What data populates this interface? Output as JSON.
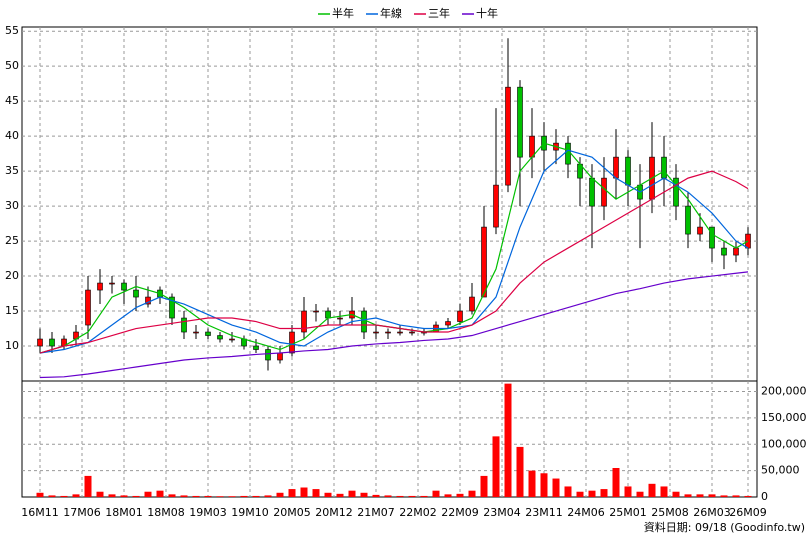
{
  "chart_data": [
    {
      "type": "candlestick",
      "legend": "top",
      "grid": true,
      "up_color": "#ff0000",
      "down_color": "#00c000",
      "xlim": [
        -3,
        119.5
      ],
      "ylim": [
        5,
        55.6
      ],
      "yticks": [
        10,
        15,
        20,
        25,
        30,
        35,
        40,
        45,
        50,
        55
      ],
      "x": [
        0,
        2,
        4,
        6,
        8,
        10,
        12,
        14,
        16,
        18,
        20,
        22,
        24,
        26,
        28,
        30,
        32,
        34,
        36,
        38,
        40,
        42,
        44,
        46,
        48,
        50,
        52,
        54,
        56,
        58,
        60,
        62,
        64,
        66,
        68,
        70,
        72,
        74,
        76,
        78,
        80,
        82,
        84,
        86,
        88,
        90,
        92,
        94,
        96,
        98,
        100,
        102,
        104,
        106,
        108,
        110,
        112,
        114,
        116,
        118
      ],
      "open": [
        10,
        11,
        10,
        11,
        13,
        18,
        19,
        19,
        18,
        16,
        18,
        17,
        14,
        12,
        12,
        11.5,
        11,
        11,
        10,
        9.5,
        8,
        9,
        12,
        15,
        15,
        14,
        14,
        15,
        12,
        12,
        12,
        12,
        12,
        12,
        13,
        13.5,
        15,
        17,
        27,
        33,
        47,
        37,
        40,
        38,
        39,
        36,
        34,
        30,
        34,
        37,
        33,
        31,
        37,
        34,
        30,
        26,
        27,
        24,
        23,
        24
      ],
      "high": [
        12.5,
        12,
        11.5,
        13,
        20,
        21,
        20,
        19.5,
        20,
        18.5,
        18.5,
        17.5,
        15,
        13,
        12.5,
        12,
        12,
        11.5,
        11,
        10,
        10,
        13,
        17,
        16,
        15.5,
        15,
        17,
        15.5,
        13,
        12.5,
        13,
        12.5,
        12.5,
        13.5,
        14,
        16,
        19,
        30,
        44,
        54,
        48,
        44,
        42,
        41,
        40,
        37,
        36,
        37,
        41,
        38,
        36,
        42,
        40,
        36,
        32,
        29,
        27,
        25,
        25,
        27
      ],
      "low": [
        9,
        9,
        9.5,
        10,
        11,
        16,
        17.5,
        16,
        15,
        15.5,
        16,
        13,
        11,
        11,
        11,
        10.5,
        10.5,
        9.5,
        9,
        6.5,
        7.5,
        8.5,
        11,
        13.5,
        13,
        13,
        13,
        11,
        11,
        11,
        11.5,
        11.5,
        11.5,
        12,
        12.5,
        13,
        14.5,
        17,
        26,
        32,
        30,
        34,
        35,
        36,
        34,
        30,
        24,
        28,
        31,
        30,
        24,
        29,
        30,
        28,
        24,
        25,
        22,
        21,
        22,
        23
      ],
      "close": [
        11,
        10,
        11,
        12,
        18,
        19,
        19,
        18,
        17,
        17,
        17,
        14,
        12,
        12,
        11.5,
        11,
        11,
        10,
        9.5,
        8,
        9,
        12,
        15,
        15,
        14,
        14,
        15,
        12,
        12,
        12,
        12,
        12,
        12,
        13,
        13.5,
        15,
        17,
        27,
        33,
        47,
        37,
        40,
        38,
        39,
        36,
        34,
        30,
        34,
        37,
        33,
        31,
        37,
        34,
        30,
        26,
        27,
        24,
        23,
        24,
        26
      ],
      "series": [
        {
          "name": "半年",
          "color": "#00c000",
          "x": [
            0,
            4,
            8,
            12,
            16,
            20,
            24,
            28,
            32,
            36,
            40,
            44,
            48,
            52,
            56,
            60,
            64,
            68,
            72,
            76,
            80,
            84,
            88,
            92,
            96,
            100,
            104,
            108,
            112,
            116,
            118
          ],
          "values": [
            9,
            10,
            12,
            17,
            18.5,
            17.5,
            15.5,
            13,
            11.5,
            10.5,
            9.5,
            11,
            14,
            14.5,
            13,
            12.5,
            12,
            12.5,
            14,
            21,
            35,
            39,
            38,
            34,
            31,
            33,
            35,
            31,
            26,
            24,
            25
          ]
        },
        {
          "name": "年線",
          "color": "#0066dd",
          "x": [
            0,
            4,
            8,
            12,
            16,
            20,
            24,
            28,
            32,
            36,
            40,
            44,
            48,
            52,
            56,
            60,
            64,
            68,
            72,
            76,
            80,
            84,
            88,
            92,
            96,
            100,
            104,
            108,
            112,
            116,
            118
          ],
          "values": [
            9,
            9.5,
            10.5,
            13,
            15.5,
            17,
            16,
            14.5,
            13,
            12,
            10.5,
            10,
            12,
            13.5,
            14,
            13,
            12.5,
            12.5,
            13,
            17,
            27,
            35,
            38,
            37,
            34,
            32,
            34,
            32,
            29,
            25,
            24
          ]
        },
        {
          "name": "三年",
          "color": "#dd0044",
          "x": [
            0,
            4,
            8,
            12,
            16,
            20,
            24,
            28,
            32,
            36,
            40,
            44,
            48,
            52,
            56,
            60,
            64,
            68,
            72,
            76,
            80,
            84,
            88,
            92,
            96,
            100,
            104,
            108,
            112,
            116,
            118
          ],
          "values": [
            9,
            10,
            10.5,
            11.5,
            12.5,
            13,
            13.5,
            14,
            14,
            13.5,
            12.5,
            12.5,
            13,
            13,
            13,
            12.5,
            12,
            12,
            13,
            15,
            19,
            22,
            24,
            26,
            28,
            30,
            32,
            34,
            35,
            33.5,
            32.5
          ]
        },
        {
          "name": "十年",
          "color": "#6600cc",
          "x": [
            0,
            4,
            8,
            12,
            16,
            20,
            24,
            28,
            32,
            36,
            40,
            44,
            48,
            52,
            56,
            60,
            64,
            68,
            72,
            76,
            80,
            84,
            88,
            92,
            96,
            100,
            104,
            108,
            112,
            116,
            118
          ],
          "values": [
            5.5,
            5.6,
            6,
            6.5,
            7,
            7.5,
            8,
            8.3,
            8.5,
            8.8,
            9,
            9.3,
            9.5,
            10,
            10.3,
            10.5,
            10.8,
            11,
            11.5,
            12.5,
            13.5,
            14.5,
            15.5,
            16.5,
            17.5,
            18.2,
            19,
            19.6,
            20,
            20.4,
            20.6
          ]
        }
      ]
    },
    {
      "type": "bar",
      "color": "#ff0000",
      "grid": true,
      "xlim": [
        -3,
        119.5
      ],
      "ylim": [
        0,
        220000
      ],
      "yticks": [
        0,
        {
          "value": 50000,
          "label": "50,000"
        },
        {
          "value": 100000,
          "label": "100,000"
        },
        {
          "value": 150000,
          "label": "150,000"
        },
        {
          "value": 200000,
          "label": "200,000"
        }
      ],
      "xticks": [
        {
          "value": 0,
          "label": "16M11"
        },
        {
          "value": 7,
          "label": "17M06"
        },
        {
          "value": 14,
          "label": "18M01"
        },
        {
          "value": 21,
          "label": "18M08"
        },
        {
          "value": 28,
          "label": "19M03"
        },
        {
          "value": 35,
          "label": "19M10"
        },
        {
          "value": 42,
          "label": "20M05"
        },
        {
          "value": 49,
          "label": "20M12"
        },
        {
          "value": 56,
          "label": "21M07"
        },
        {
          "value": 63,
          "label": "22M02"
        },
        {
          "value": 70,
          "label": "22M09"
        },
        {
          "value": 77,
          "label": "23M04"
        },
        {
          "value": 84,
          "label": "23M11"
        },
        {
          "value": 91,
          "label": "24M06"
        },
        {
          "value": 98,
          "label": "25M01"
        },
        {
          "value": 105,
          "label": "25M08"
        },
        {
          "value": 112,
          "label": "26M03"
        },
        {
          "value": 118,
          "label": "26M09"
        }
      ],
      "x": [
        0,
        2,
        4,
        6,
        8,
        10,
        12,
        14,
        16,
        18,
        20,
        22,
        24,
        26,
        28,
        30,
        32,
        34,
        36,
        38,
        40,
        42,
        44,
        46,
        48,
        50,
        52,
        54,
        56,
        58,
        60,
        62,
        64,
        66,
        68,
        70,
        72,
        74,
        76,
        78,
        80,
        82,
        84,
        86,
        88,
        90,
        92,
        94,
        96,
        98,
        100,
        102,
        104,
        106,
        108,
        110,
        112,
        114,
        116,
        118
      ],
      "values": [
        8000,
        3000,
        2000,
        5000,
        40000,
        10000,
        5000,
        3000,
        2000,
        10000,
        12000,
        5000,
        3000,
        2000,
        2000,
        1500,
        1500,
        2000,
        2000,
        3000,
        8000,
        15000,
        18000,
        15000,
        8000,
        6000,
        12000,
        8000,
        4000,
        3000,
        2000,
        2000,
        2000,
        12000,
        5000,
        6000,
        12000,
        40000,
        115000,
        215000,
        95000,
        50000,
        45000,
        35000,
        20000,
        10000,
        12000,
        15000,
        55000,
        20000,
        10000,
        25000,
        20000,
        10000,
        5000,
        5000,
        5000,
        3000,
        3000,
        2000
      ],
      "footer": "資料日期: 09/18 (Goodinfo.tw)"
    }
  ]
}
